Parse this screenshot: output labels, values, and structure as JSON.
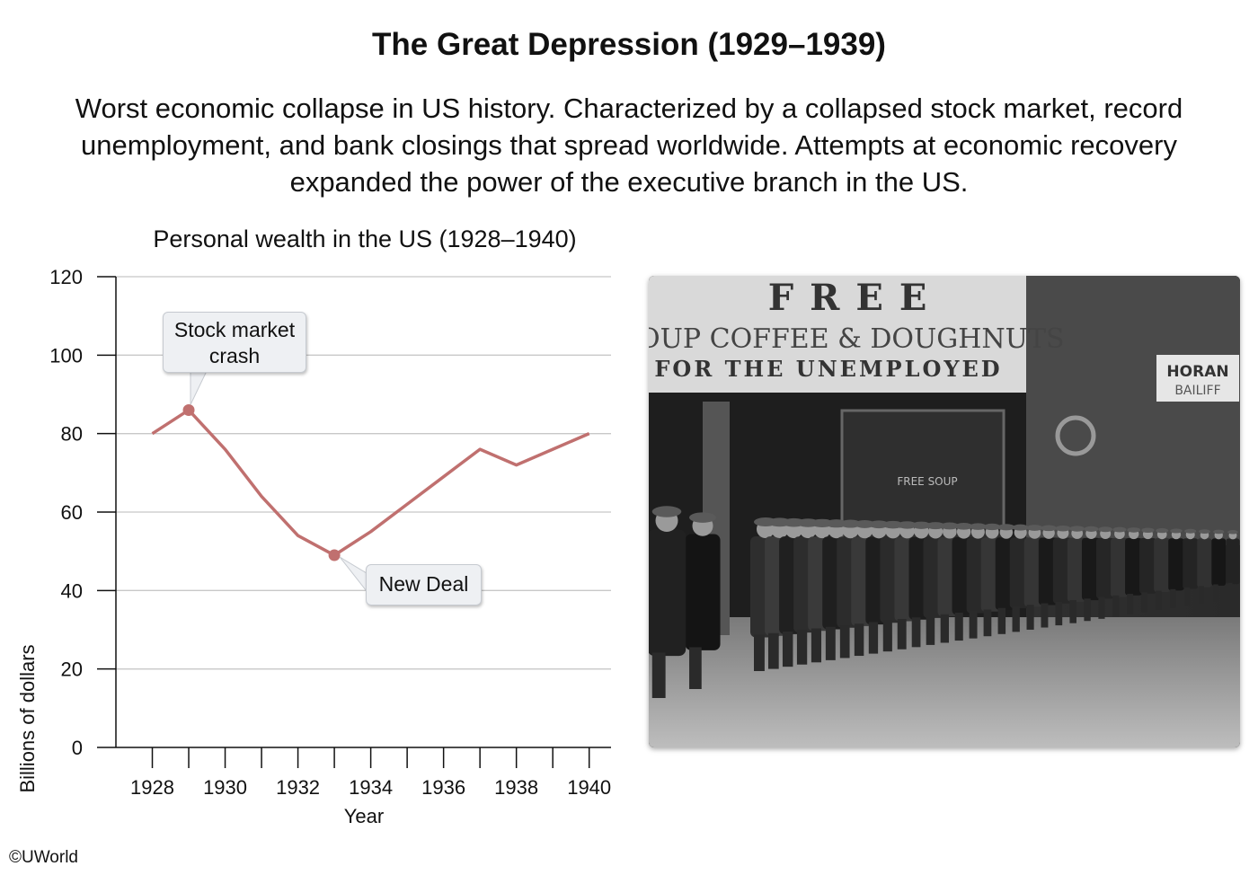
{
  "header": {
    "title": "The Great Depression (1929–1939)",
    "description": "Worst economic collapse in US history. Characterized by a collapsed stock market, record unemployment, and bank closings that spread worldwide. Attempts at economic recovery expanded the power of the executive branch in the US."
  },
  "chart_data": {
    "type": "line",
    "title": "Personal wealth in the US (1928–1940)",
    "xlabel": "Year",
    "ylabel": "Billions of dollars",
    "x": [
      1928,
      1929,
      1930,
      1931,
      1932,
      1933,
      1934,
      1935,
      1936,
      1937,
      1938,
      1939,
      1940
    ],
    "values": [
      80,
      86,
      76,
      64,
      54,
      49,
      55,
      62,
      69,
      76,
      72,
      76,
      80
    ],
    "xlim": [
      1927,
      1940.6
    ],
    "ylim": [
      0,
      120
    ],
    "xticks": [
      1928,
      1929,
      1930,
      1931,
      1932,
      1933,
      1934,
      1935,
      1936,
      1937,
      1938,
      1939,
      1940
    ],
    "xtick_labels": [
      "1928",
      "1930",
      "1932",
      "1934",
      "1936",
      "1938",
      "1940"
    ],
    "yticks": [
      0,
      20,
      40,
      60,
      80,
      100,
      120
    ],
    "grid": true,
    "line_color": "#c0706f",
    "annotations": [
      {
        "text": "Stock market crash",
        "x": 1929,
        "y": 86
      },
      {
        "text": "New Deal",
        "x": 1933,
        "y": 49
      }
    ]
  },
  "photo": {
    "sign_main": "FREE",
    "sign_line2": "SOUP COFFEE & DOUGHNUTS",
    "sign_line3": "FOR THE UNEMPLOYED",
    "side_sign_1": "HORAN",
    "side_sign_2": "BAILIFF",
    "window_text": "FREE SOUP"
  },
  "footer": {
    "copyright": "©UWorld"
  }
}
